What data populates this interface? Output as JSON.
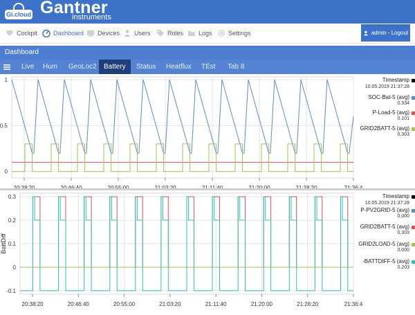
{
  "brand": {
    "badge": "Gi.cloud",
    "name": "Gantner",
    "sub": "instruments"
  },
  "nav": {
    "items": [
      {
        "label": "Cockpit",
        "icon": "heart-icon"
      },
      {
        "label": "Dashboard",
        "icon": "dashboard-icon"
      },
      {
        "label": "Devices",
        "icon": "devices-icon"
      },
      {
        "label": "Users",
        "icon": "user-icon"
      },
      {
        "label": "Roles",
        "icon": "tag-icon"
      },
      {
        "label": "Logs",
        "icon": "folder-icon"
      },
      {
        "label": "Settings",
        "icon": "gear-icon"
      }
    ],
    "user_button": "admin - Logout"
  },
  "dashboard": {
    "title": "Dashboard"
  },
  "tabs": [
    "Live",
    "Hum",
    "GeoLoc2",
    "Battery",
    "Status",
    "Heatflux",
    "TEst",
    "Tab 8"
  ],
  "active_tab": "Battery",
  "colors": {
    "brand": "#3d72c9",
    "tab_active": "#1f3f7a",
    "blue": "#5b8cc6",
    "red": "#d9534f",
    "olive": "#a5c04c",
    "teal": "#28c5b2"
  },
  "chart_data": [
    {
      "type": "line",
      "ylim": [
        -0.07,
        1.03
      ],
      "yticks": [
        "1",
        "0.5",
        "0"
      ],
      "xticks": [
        "20:38:20",
        "20:46:40",
        "20:55:00",
        "21:03:20",
        "21:11:40",
        "21:20:00",
        "21:28:20",
        "21:36:4"
      ],
      "legend": {
        "header": "Timestamp",
        "header_value": "10.05.2019 21:37:28",
        "entries": [
          {
            "name": "SOC-Bat-5 (avg)",
            "value": "0.334",
            "color": "#5b8cc6"
          },
          {
            "name": "P-Load-5 (avg)",
            "value": "0.101",
            "color": "#d9534f"
          },
          {
            "name": "GRID2BATT-5 (avg)",
            "value": "0.303",
            "color": "#a5c04c"
          }
        ]
      },
      "series": [
        {
          "name": "SOC-Bat-5 (avg)",
          "kind": "sawtooth",
          "high": 1.0,
          "low": 0.2,
          "cycles": 13,
          "color": "#5b8cc6"
        },
        {
          "name": "P-Load-5 (avg)",
          "kind": "constant",
          "value": 0.1,
          "color": "#d9534f"
        },
        {
          "name": "GRID2BATT-5 (avg)",
          "kind": "pulse",
          "high": 0.3,
          "low": 0.0,
          "cycles": 13,
          "color": "#a5c04c"
        }
      ]
    },
    {
      "type": "line",
      "ylabel": "BattDiff",
      "ylim": [
        -0.115,
        0.315
      ],
      "yticks": [
        "0.3",
        "0.2",
        "0.1",
        "0",
        "-0.1"
      ],
      "xticks": [
        "20:38:20",
        "20:46:40",
        "20:55:00",
        "21:03:20",
        "21:11:40",
        "21:20:00",
        "21:28:20",
        "21:36:4"
      ],
      "legend": {
        "header": "Timestamp",
        "header_value": "10.05.2019 21:37:28",
        "entries": [
          {
            "name": "P-PV2GRID-5 (avg)",
            "value": "0.000",
            "color": "#5b8cc6"
          },
          {
            "name": "GRID2BATT-5 (avg)",
            "value": "0.303",
            "color": "#d9534f"
          },
          {
            "name": "GRID2LOAD-5 (avg)",
            "value": "0.000",
            "color": "#a5c04c"
          },
          {
            "name": "-BATTDIFF-5 (avg)",
            "value": "0.203",
            "color": "#28c5b2"
          }
        ]
      },
      "series": [
        {
          "name": "P-PV2GRID-5 (avg)",
          "kind": "constant",
          "value": 0.0,
          "color": "#5b8cc6"
        },
        {
          "name": "GRID2BATT-5 (avg)",
          "kind": "pulse",
          "high": 0.3,
          "low": 0.0,
          "cycles": 13,
          "color": "#d9534f"
        },
        {
          "name": "GRID2LOAD-5 (avg)",
          "kind": "constant",
          "value": 0.0,
          "color": "#a5c04c"
        },
        {
          "name": "-BATTDIFF-5 (avg)",
          "kind": "pulse",
          "high": 0.3,
          "low": -0.1,
          "mid": 0.2,
          "cycles": 13,
          "color": "#28c5b2"
        }
      ]
    }
  ]
}
